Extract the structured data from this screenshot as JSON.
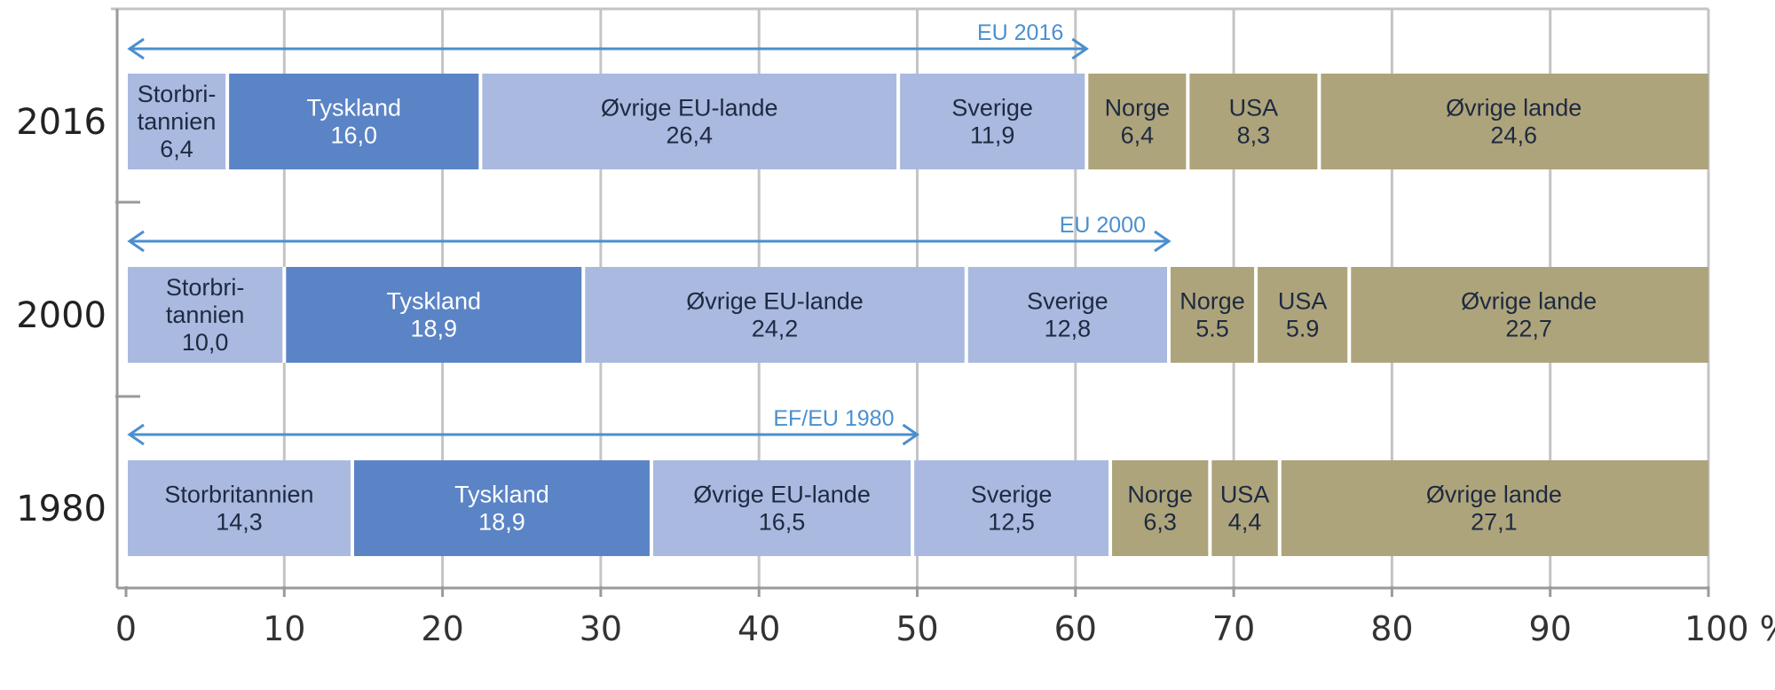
{
  "chart_data": {
    "type": "bar",
    "orientation": "horizontal",
    "stacked": true,
    "title": "",
    "xlabel": "",
    "ylabel": "",
    "xlim": [
      0,
      100
    ],
    "x_ticks": [
      "0",
      "10",
      "20",
      "30",
      "40",
      "50",
      "60",
      "70",
      "80",
      "90",
      "100 %"
    ],
    "grid": true,
    "categories": [
      "2016",
      "2000",
      "1980"
    ],
    "rows": [
      {
        "year": "2016",
        "segments": [
          {
            "name": "Storbritannien",
            "label_lines": [
              "Storbri-",
              "tannien"
            ],
            "value": 6.4,
            "value_label": "6,4",
            "color": "#a9b9e0",
            "text_color": "#1e2a40"
          },
          {
            "name": "Tyskland",
            "label_lines": [
              "Tyskland"
            ],
            "value": 16.0,
            "value_label": "16,0",
            "color": "#5b84c6",
            "text_color": "#ffffff"
          },
          {
            "name": "Øvrige EU-lande",
            "label_lines": [
              "Øvrige EU-lande"
            ],
            "value": 26.4,
            "value_label": "26,4",
            "color": "#a9b9e0",
            "text_color": "#1e2a40"
          },
          {
            "name": "Sverige",
            "label_lines": [
              "Sverige"
            ],
            "value": 11.9,
            "value_label": "11,9",
            "color": "#a9b9e0",
            "text_color": "#1e2a40"
          },
          {
            "name": "Norge",
            "label_lines": [
              "Norge"
            ],
            "value": 6.4,
            "value_label": "6,4",
            "color": "#aea47b",
            "text_color": "#1e2a40"
          },
          {
            "name": "USA",
            "label_lines": [
              "USA"
            ],
            "value": 8.3,
            "value_label": "8,3",
            "color": "#aea47b",
            "text_color": "#1e2a40"
          },
          {
            "name": "Øvrige lande",
            "label_lines": [
              "Øvrige lande"
            ],
            "value": 24.6,
            "value_label": "24,6",
            "color": "#aea47b",
            "text_color": "#1e2a40"
          }
        ],
        "arrow": {
          "label": "EU 2016",
          "from": 0,
          "to": 60.7,
          "color": "#4a8fcf"
        }
      },
      {
        "year": "2000",
        "segments": [
          {
            "name": "Storbritannien",
            "label_lines": [
              "Storbri-",
              "tannien"
            ],
            "value": 10.0,
            "value_label": "10,0",
            "color": "#a9b9e0",
            "text_color": "#1e2a40"
          },
          {
            "name": "Tyskland",
            "label_lines": [
              "Tyskland"
            ],
            "value": 18.9,
            "value_label": "18,9",
            "color": "#5b84c6",
            "text_color": "#ffffff"
          },
          {
            "name": "Øvrige EU-lande",
            "label_lines": [
              "Øvrige EU-lande"
            ],
            "value": 24.2,
            "value_label": "24,2",
            "color": "#a9b9e0",
            "text_color": "#1e2a40"
          },
          {
            "name": "Sverige",
            "label_lines": [
              "Sverige"
            ],
            "value": 12.8,
            "value_label": "12,8",
            "color": "#a9b9e0",
            "text_color": "#1e2a40"
          },
          {
            "name": "Norge",
            "label_lines": [
              "Norge"
            ],
            "value": 5.5,
            "value_label": "5.5",
            "color": "#aea47b",
            "text_color": "#1e2a40"
          },
          {
            "name": "USA",
            "label_lines": [
              "USA"
            ],
            "value": 5.9,
            "value_label": "5.9",
            "color": "#aea47b",
            "text_color": "#1e2a40"
          },
          {
            "name": "Øvrige lande",
            "label_lines": [
              "Øvrige lande"
            ],
            "value": 22.7,
            "value_label": "22,7",
            "color": "#aea47b",
            "text_color": "#1e2a40"
          }
        ],
        "arrow": {
          "label": "EU 2000",
          "from": 0,
          "to": 65.9,
          "color": "#4a8fcf"
        }
      },
      {
        "year": "1980",
        "segments": [
          {
            "name": "Storbritannien",
            "label_lines": [
              "Storbritannien"
            ],
            "value": 14.3,
            "value_label": "14,3",
            "color": "#a9b9e0",
            "text_color": "#1e2a40"
          },
          {
            "name": "Tyskland",
            "label_lines": [
              "Tyskland"
            ],
            "value": 18.9,
            "value_label": "18,9",
            "color": "#5b84c6",
            "text_color": "#ffffff"
          },
          {
            "name": "Øvrige EU-lande",
            "label_lines": [
              "Øvrige EU-lande"
            ],
            "value": 16.5,
            "value_label": "16,5",
            "color": "#a9b9e0",
            "text_color": "#1e2a40"
          },
          {
            "name": "Sverige",
            "label_lines": [
              "Sverige"
            ],
            "value": 12.5,
            "value_label": "12,5",
            "color": "#a9b9e0",
            "text_color": "#1e2a40"
          },
          {
            "name": "Norge",
            "label_lines": [
              "Norge"
            ],
            "value": 6.3,
            "value_label": "6,3",
            "color": "#aea47b",
            "text_color": "#1e2a40"
          },
          {
            "name": "USA",
            "label_lines": [
              "USA"
            ],
            "value": 4.4,
            "value_label": "4,4",
            "color": "#aea47b",
            "text_color": "#1e2a40"
          },
          {
            "name": "Øvrige lande",
            "label_lines": [
              "Øvrige lande"
            ],
            "value": 27.1,
            "value_label": "27,1",
            "color": "#aea47b",
            "text_color": "#1e2a40"
          }
        ],
        "arrow": {
          "label": "EF/EU 1980",
          "from": 0,
          "to": 50.0,
          "color": "#4a8fcf"
        }
      }
    ]
  }
}
